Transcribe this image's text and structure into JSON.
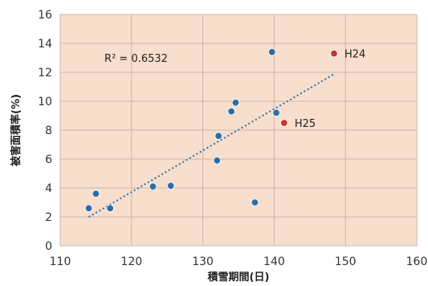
{
  "chart_data": {
    "type": "scatter",
    "xlabel": "積雪期間(日)",
    "ylabel": "被害面積率(%)",
    "xlim": [
      110,
      160
    ],
    "ylim": [
      0,
      16
    ],
    "x_ticks": [
      110,
      120,
      130,
      140,
      150,
      160
    ],
    "y_ticks": [
      0,
      2,
      4,
      6,
      8,
      10,
      12,
      14,
      16
    ],
    "grid": true,
    "colors": {
      "plot_background": "#f8decc",
      "grid": "#c9b8ad",
      "series_point": "#2a6ea8",
      "highlight_point": "#c0392b",
      "trendline": "#2a6ea8"
    },
    "series": [
      {
        "points": [
          {
            "x": 114,
            "y": 2.6
          },
          {
            "x": 115,
            "y": 3.6
          },
          {
            "x": 117,
            "y": 2.6
          },
          {
            "x": 123,
            "y": 4.1
          },
          {
            "x": 125.5,
            "y": 4.15
          },
          {
            "x": 132,
            "y": 5.9
          },
          {
            "x": 132.2,
            "y": 7.6
          },
          {
            "x": 134,
            "y": 9.3
          },
          {
            "x": 134.6,
            "y": 9.9
          },
          {
            "x": 137.3,
            "y": 3.0
          },
          {
            "x": 139.7,
            "y": 13.4
          },
          {
            "x": 140.3,
            "y": 9.2
          }
        ]
      },
      {
        "points": [
          {
            "x": 141.4,
            "y": 8.5,
            "label": "H25"
          },
          {
            "x": 148.4,
            "y": 13.3,
            "label": "H24"
          }
        ]
      }
    ],
    "trendline": {
      "style": "dotted",
      "x": [
        114,
        148.5
      ],
      "y": [
        2.0,
        11.9
      ]
    },
    "annotations": [
      {
        "text": "R² = 0.6532",
        "x": 116.2,
        "y": 13.0
      }
    ]
  }
}
